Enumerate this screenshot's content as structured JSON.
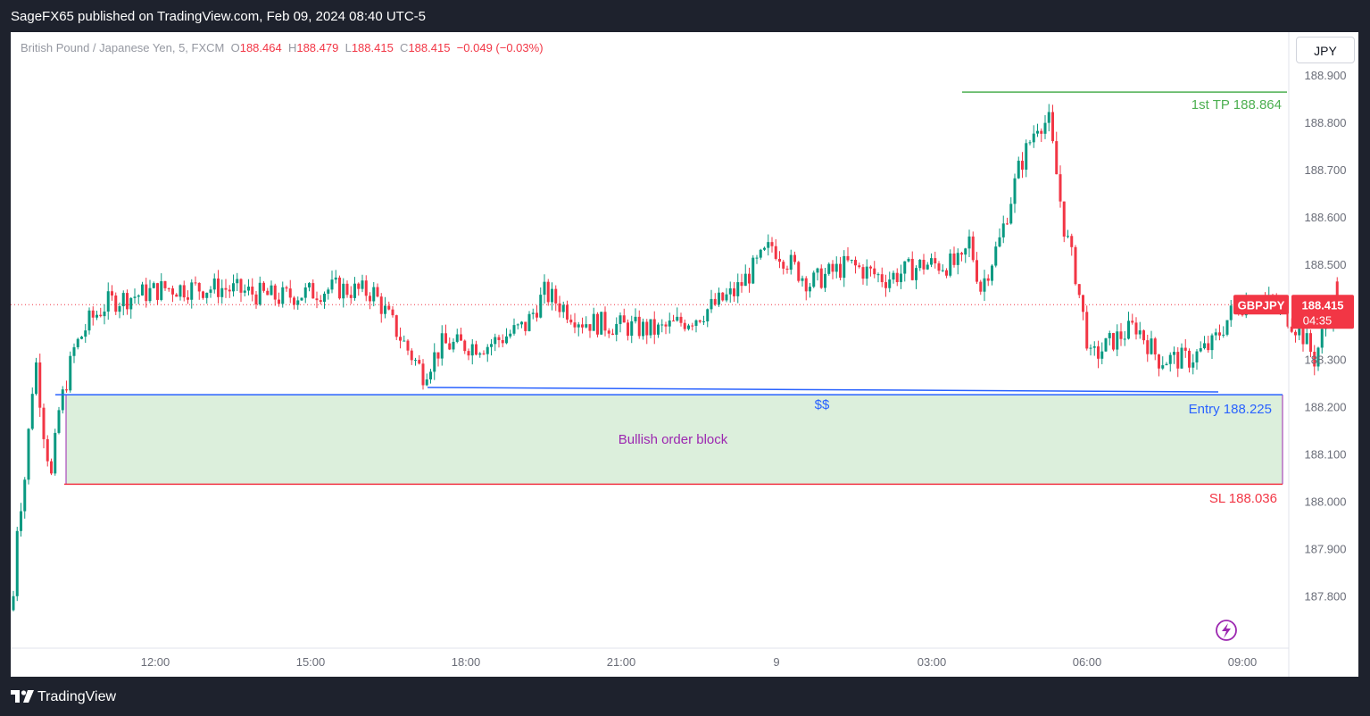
{
  "header": {
    "published_text": "SageFX65 published on TradingView.com, Feb 09, 2024 08:40 UTC-5"
  },
  "legend": {
    "symbol": "British Pound / Japanese Yen, 5, FXCM",
    "o_label": "O",
    "o_value": "188.464",
    "h_label": "H",
    "h_value": "188.479",
    "l_label": "L",
    "l_value": "188.415",
    "c_label": "C",
    "c_value": "188.415",
    "change": "−0.049 (−0.03%)"
  },
  "currency_button": "JPY",
  "price_badge": {
    "symbol": "GBPJPY",
    "price": "188.415",
    "countdown": "04:35"
  },
  "annotations": {
    "tp_label": "1st TP 188.864",
    "entry_label": "Entry  188.225",
    "sl_label": "SL 188.036",
    "order_block_label": "Bullish order block",
    "liquidity_label": "$$"
  },
  "footer": {
    "brand": "TradingView"
  },
  "colors": {
    "up": "#089981",
    "down": "#f23645",
    "tp": "#4caf50",
    "entry": "#2962ff",
    "sl": "#f23645",
    "block_fill": "#dcefdc",
    "block_text": "#9c27b0",
    "background": "#1e222d"
  },
  "chart_data": {
    "type": "candlestick",
    "y_axis": {
      "range": [
        187.72,
        188.93
      ],
      "ticks": [
        "188.900",
        "188.800",
        "188.700",
        "188.600",
        "188.500",
        "188.400",
        "188.300",
        "188.200",
        "188.100",
        "188.000",
        "187.900",
        "187.800"
      ]
    },
    "x_axis": {
      "ticks": [
        "12:00",
        "15:00",
        "18:00",
        "21:00",
        "9",
        "03:00",
        "06:00",
        "09:00"
      ]
    },
    "levels": {
      "tp": 188.864,
      "entry": 188.225,
      "sl": 188.036,
      "last": 188.415
    },
    "candle_path": [
      [
        0,
        187.8
      ],
      [
        1,
        187.95
      ],
      [
        3,
        188.05
      ],
      [
        5,
        188.24
      ],
      [
        6,
        188.29
      ],
      [
        8,
        188.15
      ],
      [
        10,
        188.05
      ],
      [
        12,
        188.19
      ],
      [
        16,
        188.32
      ],
      [
        20,
        188.38
      ],
      [
        25,
        188.42
      ],
      [
        40,
        188.45
      ],
      [
        55,
        188.45
      ],
      [
        70,
        188.43
      ],
      [
        85,
        188.45
      ],
      [
        95,
        188.44
      ],
      [
        104,
        188.32
      ],
      [
        108,
        188.27
      ],
      [
        113,
        188.33
      ],
      [
        125,
        188.33
      ],
      [
        135,
        188.37
      ],
      [
        140,
        188.44
      ],
      [
        150,
        188.38
      ],
      [
        160,
        188.37
      ],
      [
        170,
        188.36
      ],
      [
        180,
        188.39
      ],
      [
        190,
        188.44
      ],
      [
        200,
        188.54
      ],
      [
        210,
        188.46
      ],
      [
        220,
        188.5
      ],
      [
        230,
        188.47
      ],
      [
        240,
        188.5
      ],
      [
        250,
        188.5
      ],
      [
        252,
        188.55
      ],
      [
        255,
        188.45
      ],
      [
        260,
        188.55
      ],
      [
        265,
        188.7
      ],
      [
        270,
        188.8
      ],
      [
        273,
        188.8
      ],
      [
        277,
        188.58
      ],
      [
        280,
        188.48
      ],
      [
        284,
        188.3
      ],
      [
        290,
        188.34
      ],
      [
        296,
        188.37
      ],
      [
        302,
        188.3
      ],
      [
        310,
        188.3
      ],
      [
        316,
        188.33
      ],
      [
        322,
        188.41
      ],
      [
        328,
        188.43
      ],
      [
        335,
        188.4
      ],
      [
        340,
        188.35
      ],
      [
        343,
        188.3
      ],
      [
        347,
        188.4
      ],
      [
        349,
        188.415
      ]
    ]
  }
}
